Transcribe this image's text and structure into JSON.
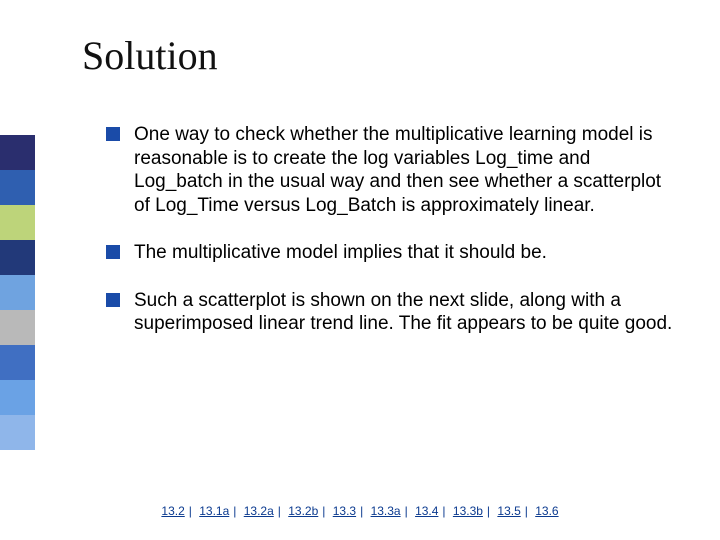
{
  "title": "Solution",
  "bullets": [
    "One way to check whether the multiplicative learning model is reasonable is to create the log variables Log_time and Log_batch in the usual way and then see whether a scatterplot of Log_Time versus Log_Batch is approximately linear.",
    "The multiplicative model implies that it should be.",
    "Such a scatterplot is shown on the next slide, along with a superimposed linear trend line. The fit appears to be quite good."
  ],
  "nav": [
    "13.2",
    "13.1a",
    "13.2a",
    "13.2b",
    "13.3",
    "13.3a",
    "13.4",
    "13.3b",
    "13.5",
    "13.6"
  ],
  "styles": {
    "sidebar_colors": [
      "#2a2e6e",
      "#2f5fb0",
      "#bdd47a",
      "#223979",
      "#6fa3e0",
      "#b9b9b9",
      "#406fc2",
      "#6aa2e5",
      "#8fb6ea"
    ],
    "bullet_color": "#1a4ba8",
    "title_color": "#111111",
    "body_text_color": "#000000",
    "link_color": "#0b3a8f",
    "background": "#ffffff",
    "title_fontsize": 40,
    "body_fontsize": 19,
    "nav_fontsize": 12
  }
}
